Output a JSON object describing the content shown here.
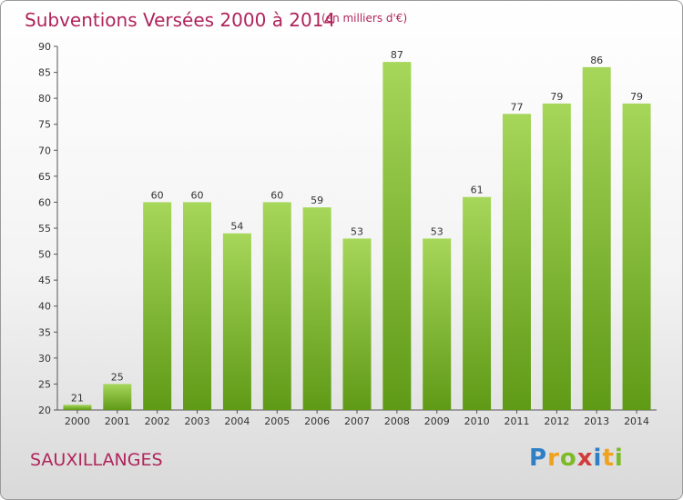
{
  "title": "Subventions Versées 2000 à 2014",
  "subtitle": "(en milliers d'€)",
  "location": "SAUXILLANGES",
  "logo": {
    "letters": [
      "P",
      "r",
      "o",
      "x",
      "i",
      "t",
      "i"
    ],
    "colors": [
      "#2e7fc6",
      "#f0a11d",
      "#7dbb26",
      "#d33b3b",
      "#2e7fc6",
      "#f0a11d",
      "#7dbb26"
    ]
  },
  "colors": {
    "bar_top": "#a6d65a",
    "bar_bottom": "#5f9a16",
    "title": "#b0245a"
  },
  "chart_data": {
    "type": "bar",
    "categories": [
      "2000",
      "2001",
      "2002",
      "2003",
      "2004",
      "2005",
      "2006",
      "2007",
      "2008",
      "2009",
      "2010",
      "2011",
      "2012",
      "2013",
      "2014"
    ],
    "values": [
      21,
      25,
      60,
      60,
      54,
      60,
      59,
      53,
      87,
      53,
      61,
      77,
      79,
      86,
      79
    ],
    "ylim": [
      20,
      90
    ],
    "yticks": [
      20,
      25,
      30,
      35,
      40,
      45,
      50,
      55,
      60,
      65,
      70,
      75,
      80,
      85,
      90
    ],
    "grid": false,
    "xlabel": "",
    "ylabel": ""
  }
}
